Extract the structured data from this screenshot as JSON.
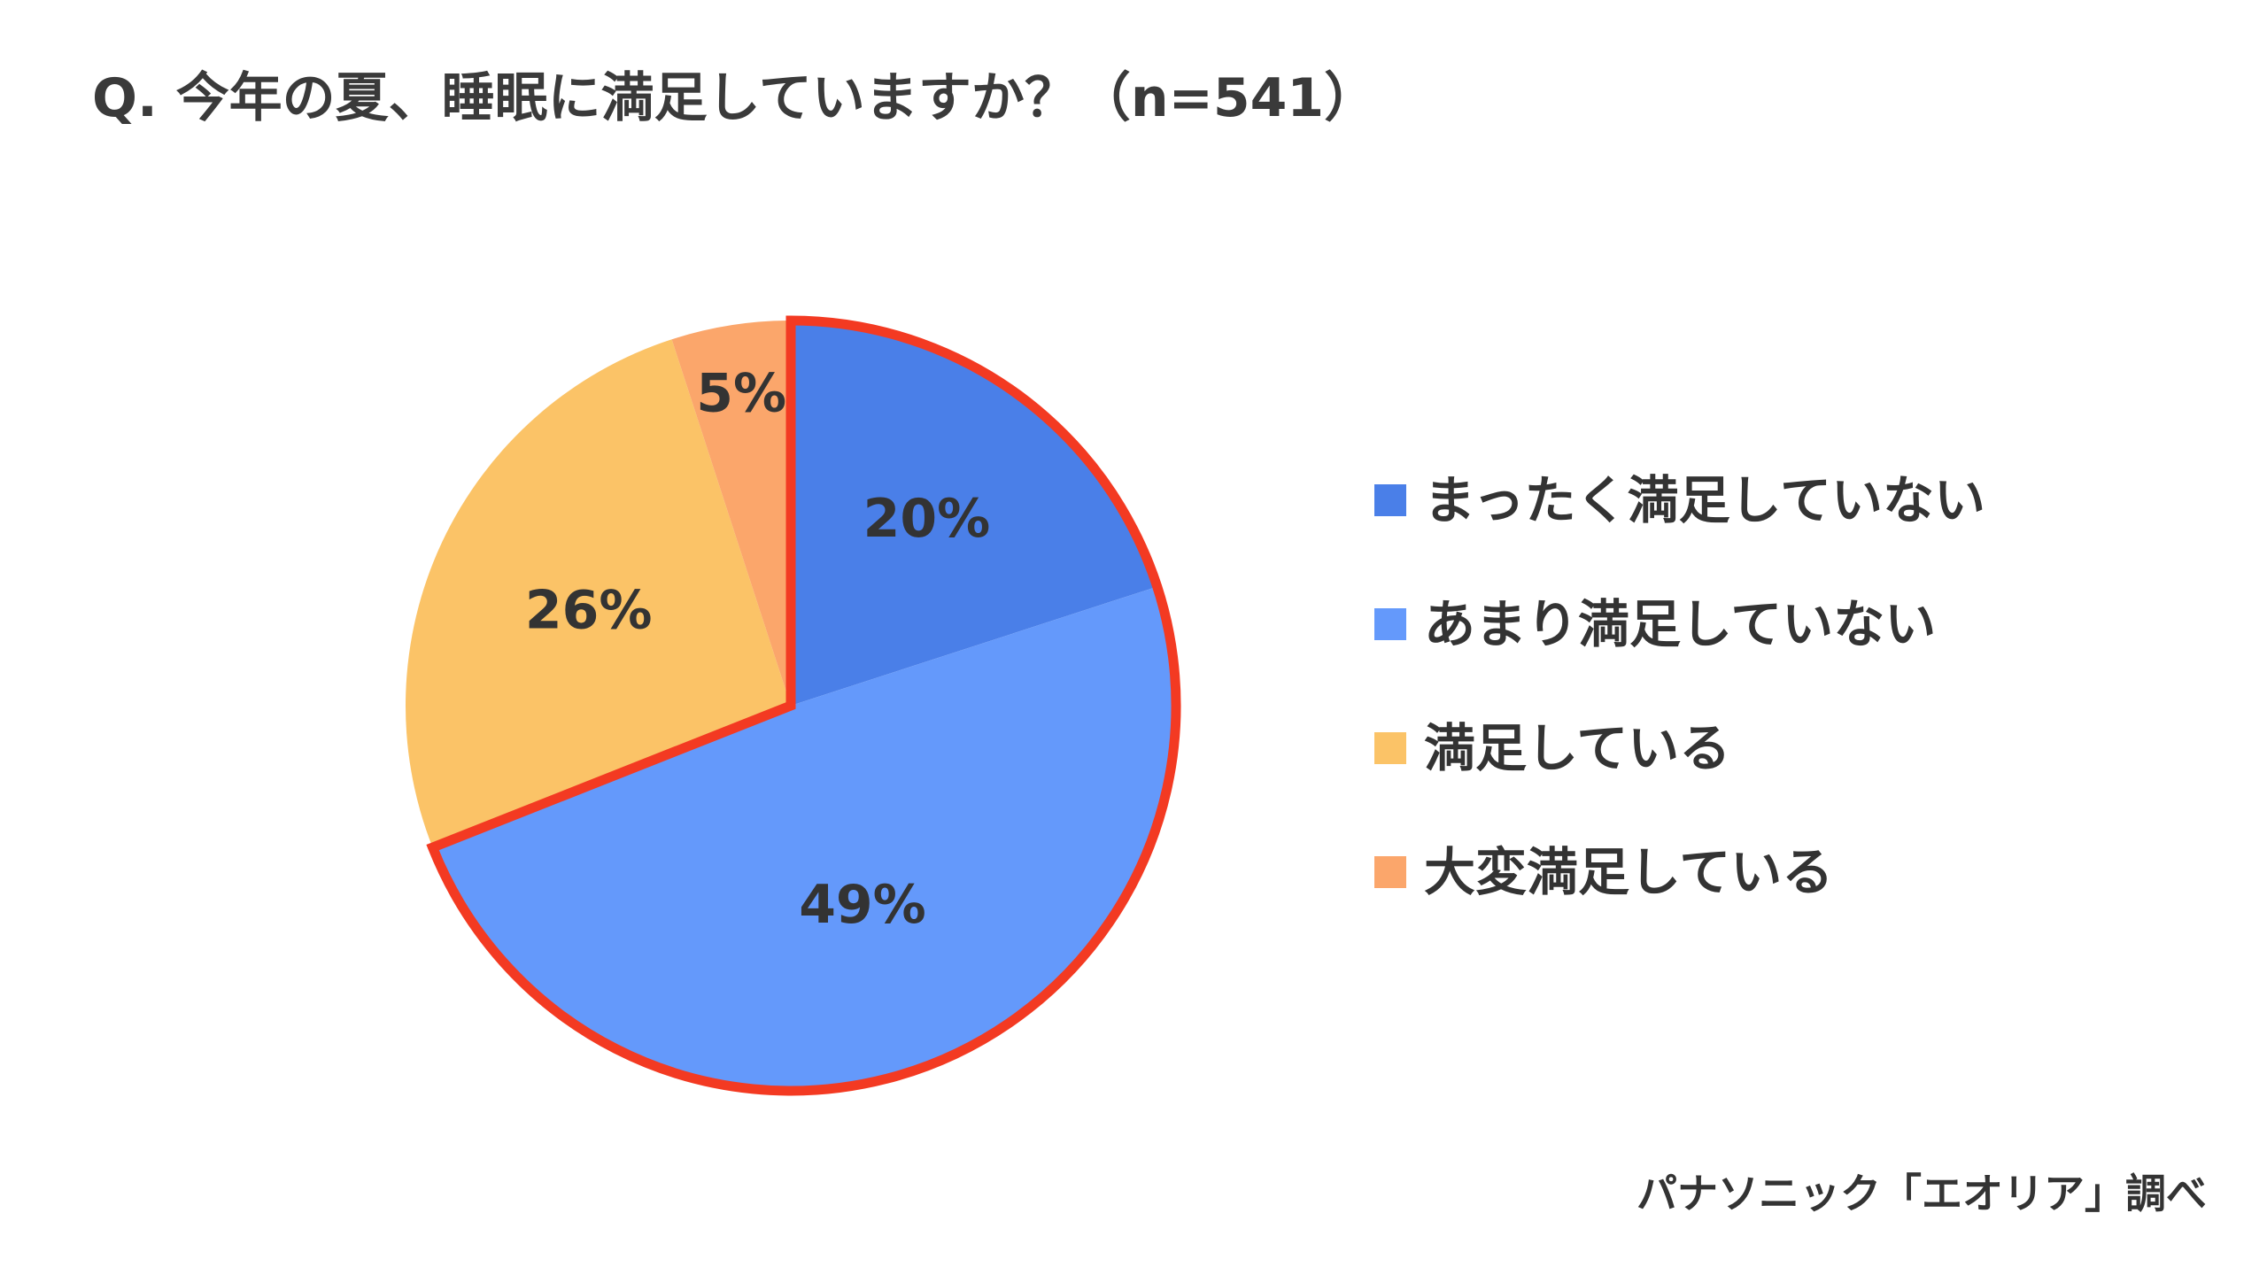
{
  "title": "Q. 今年の夏、睡眠に満足していますか？（n=541）",
  "source": "パナソニック「エオリア」調べ",
  "colors": {
    "highlight_outline": "#f33a22"
  },
  "chart_data": {
    "type": "pie",
    "title": "Q. 今年の夏、睡眠に満足していますか？（n=541）",
    "sample_size": 541,
    "legend_position": "right",
    "slices": [
      {
        "label": "まったく満足していない",
        "value": 20,
        "display": "20%",
        "color": "#4a7fe8",
        "highlighted": true
      },
      {
        "label": "あまり満足していない",
        "value": 49,
        "display": "49%",
        "color": "#6499fb",
        "highlighted": true
      },
      {
        "label": "満足している",
        "value": 26,
        "display": "26%",
        "color": "#fbc367",
        "highlighted": false
      },
      {
        "label": "大変満足している",
        "value": 5,
        "display": "5%",
        "color": "#fba66b",
        "highlighted": false
      }
    ]
  }
}
